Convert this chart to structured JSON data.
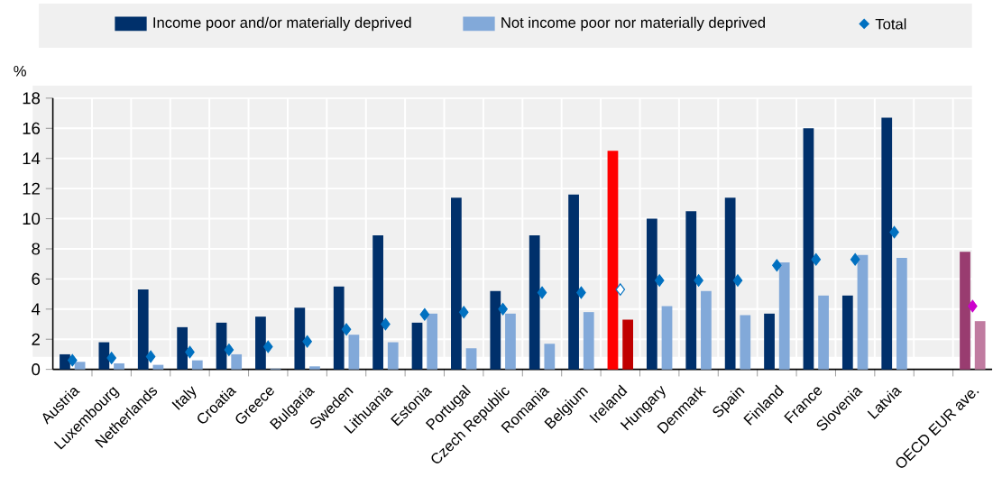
{
  "chart_data": {
    "type": "bar",
    "ylabel": "%",
    "categories": [
      "Austria",
      "Luxembourg",
      "Netherlands",
      "Italy",
      "Croatia",
      "Greece",
      "Bulgaria",
      "Sweden",
      "Lithuania",
      "Estonia",
      "Portugal",
      "Czech Republic",
      "Romania",
      "Belgium",
      "Ireland",
      "Hungary",
      "Denmark",
      "Spain",
      "Finland",
      "France",
      "Slovenia",
      "Latvia",
      null,
      "OECD EUR ave."
    ],
    "series": [
      {
        "name": "Income poor and/or materially deprived",
        "color": "#00306b",
        "colors": [
          "#00306b",
          "#00306b",
          "#00306b",
          "#00306b",
          "#00306b",
          "#00306b",
          "#00306b",
          "#00306b",
          "#00306b",
          "#00306b",
          "#00306b",
          "#00306b",
          "#00306b",
          "#00306b",
          "#ff0000",
          "#00306b",
          "#00306b",
          "#00306b",
          "#00306b",
          "#00306b",
          "#00306b",
          "#00306b",
          "#00306b",
          "#993c70"
        ],
        "values": [
          1.0,
          1.8,
          5.3,
          2.8,
          3.1,
          3.5,
          4.1,
          5.5,
          8.9,
          3.1,
          11.4,
          5.2,
          8.9,
          11.6,
          14.5,
          10.0,
          10.5,
          11.4,
          3.7,
          16.0,
          4.9,
          16.7,
          null,
          7.8
        ]
      },
      {
        "name": "Not income poor nor materially deprived",
        "color": "#82a9d9",
        "colors": [
          "#82a9d9",
          "#82a9d9",
          "#82a9d9",
          "#82a9d9",
          "#82a9d9",
          "#82a9d9",
          "#82a9d9",
          "#82a9d9",
          "#82a9d9",
          "#82a9d9",
          "#82a9d9",
          "#82a9d9",
          "#82a9d9",
          "#82a9d9",
          "#c00000",
          "#82a9d9",
          "#82a9d9",
          "#82a9d9",
          "#82a9d9",
          "#82a9d9",
          "#82a9d9",
          "#82a9d9",
          "#82a9d9",
          "#c07ba0"
        ],
        "values": [
          0.5,
          0.4,
          0.3,
          0.6,
          1.0,
          0.05,
          0.2,
          2.3,
          1.8,
          3.7,
          1.4,
          3.7,
          1.7,
          3.8,
          3.3,
          4.2,
          5.2,
          3.6,
          7.1,
          4.9,
          7.6,
          7.4,
          null,
          3.2
        ]
      },
      {
        "name": "Total",
        "type": "scatter",
        "marker": "diamond",
        "color": "#0070c0",
        "colors": [
          "#0070c0",
          "#0070c0",
          "#0070c0",
          "#0070c0",
          "#0070c0",
          "#0070c0",
          "#0070c0",
          "#0070c0",
          "#0070c0",
          "#0070c0",
          "#0070c0",
          "#0070c0",
          "#0070c0",
          "#0070c0",
          "#ffffff",
          "#0070c0",
          "#0070c0",
          "#0070c0",
          "#0070c0",
          "#0070c0",
          "#0070c0",
          "#0070c0",
          "#0070c0",
          "#cc00cc"
        ],
        "values": [
          0.6,
          0.75,
          0.85,
          1.15,
          1.3,
          1.5,
          1.85,
          2.65,
          3.0,
          3.65,
          3.8,
          4.0,
          5.1,
          5.1,
          5.3,
          5.9,
          5.9,
          5.9,
          6.9,
          7.3,
          7.3,
          9.1,
          null,
          4.2
        ]
      }
    ],
    "ylim": [
      0,
      18
    ],
    "yticks": [
      0,
      2,
      4,
      6,
      8,
      10,
      12,
      14,
      16,
      18
    ],
    "grid": true,
    "legend": "top"
  }
}
